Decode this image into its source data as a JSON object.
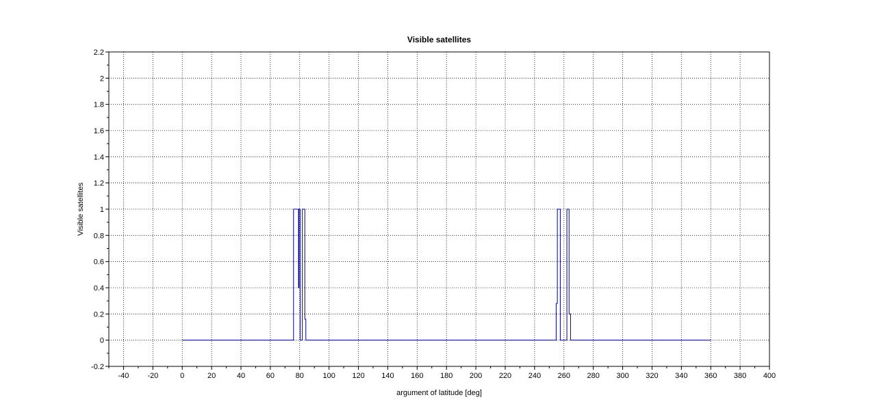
{
  "chart_data": {
    "type": "line",
    "title": "Visible satellites",
    "xlabel": "argument of latitude [deg]",
    "ylabel": "Visible satellites",
    "xlim": [
      -50,
      400
    ],
    "ylim": [
      -0.2,
      2.2
    ],
    "x_ticks": [
      -40,
      -20,
      0,
      20,
      40,
      60,
      80,
      100,
      120,
      140,
      160,
      180,
      200,
      220,
      240,
      260,
      280,
      300,
      320,
      340,
      360,
      380,
      400
    ],
    "y_ticks": [
      -0.2,
      0,
      0.2,
      0.4,
      0.6,
      0.8,
      1,
      1.2,
      1.4,
      1.6,
      1.8,
      2,
      2.2
    ],
    "x_tick_labels": [
      "-40",
      "-20",
      "0",
      "20",
      "40",
      "60",
      "80",
      "100",
      "120",
      "140",
      "160",
      "180",
      "200",
      "220",
      "240",
      "260",
      "280",
      "300",
      "320",
      "340",
      "360",
      "380",
      "400"
    ],
    "y_tick_labels": [
      "-0.2",
      "0",
      "0.2",
      "0.4",
      "0.6",
      "0.8",
      "1",
      "1.2",
      "1.4",
      "1.6",
      "1.8",
      "2",
      "2.2"
    ],
    "grid": true,
    "legend": "none",
    "series": [
      {
        "color": "#00008b",
        "x": [
          0,
          75.8,
          75.8,
          79.2,
          79.2,
          79.5,
          79.5,
          80.3,
          80.3,
          81.8,
          81.8,
          83.5,
          83.5,
          84.2,
          84.2,
          254.7,
          254.7,
          255.5,
          255.5,
          257.5,
          257.5,
          258.2,
          258.2,
          262.0,
          262.0,
          263.5,
          263.5,
          264.5,
          264.5,
          360
        ],
        "y": [
          0,
          0,
          1,
          1,
          0.4,
          0.4,
          1,
          1,
          0,
          0,
          1,
          1,
          0.16,
          0.16,
          0,
          0,
          0.28,
          0.28,
          1,
          1,
          0,
          0,
          0,
          0,
          1,
          1,
          0.2,
          0.2,
          0,
          0
        ]
      }
    ]
  }
}
